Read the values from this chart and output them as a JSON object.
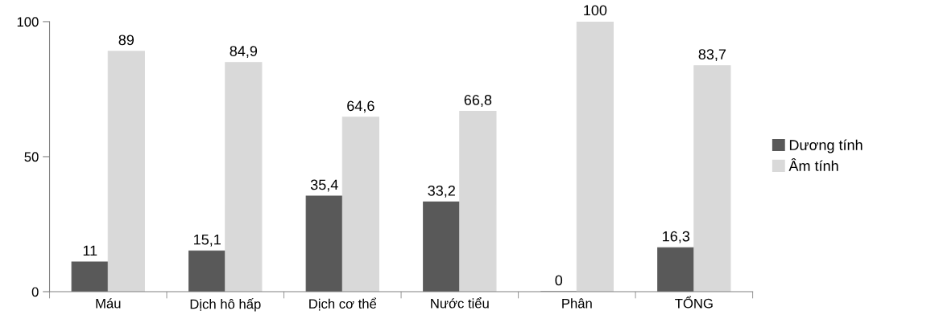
{
  "chart_data": {
    "type": "bar",
    "categories": [
      "Máu",
      "Dịch hô hấp",
      "Dịch cơ thể",
      "Nước tiểu",
      "Phân",
      "TỔNG"
    ],
    "series": [
      {
        "name": "Dương tính",
        "color": "#595959",
        "values": [
          11,
          15.1,
          35.4,
          33.2,
          0,
          16.3
        ],
        "value_labels": [
          "11",
          "15,1",
          "35,4",
          "33,2",
          "0",
          "16,3"
        ]
      },
      {
        "name": "Âm tính",
        "color": "#d9d9d9",
        "values": [
          89,
          84.9,
          64.6,
          66.8,
          100,
          83.7
        ],
        "value_labels": [
          "89",
          "84,9",
          "64,6",
          "66,8",
          "100",
          "83,7"
        ]
      }
    ],
    "ylim": [
      0,
      100
    ],
    "yticks": [
      0,
      50,
      100
    ],
    "grid": false,
    "legend": "right"
  }
}
